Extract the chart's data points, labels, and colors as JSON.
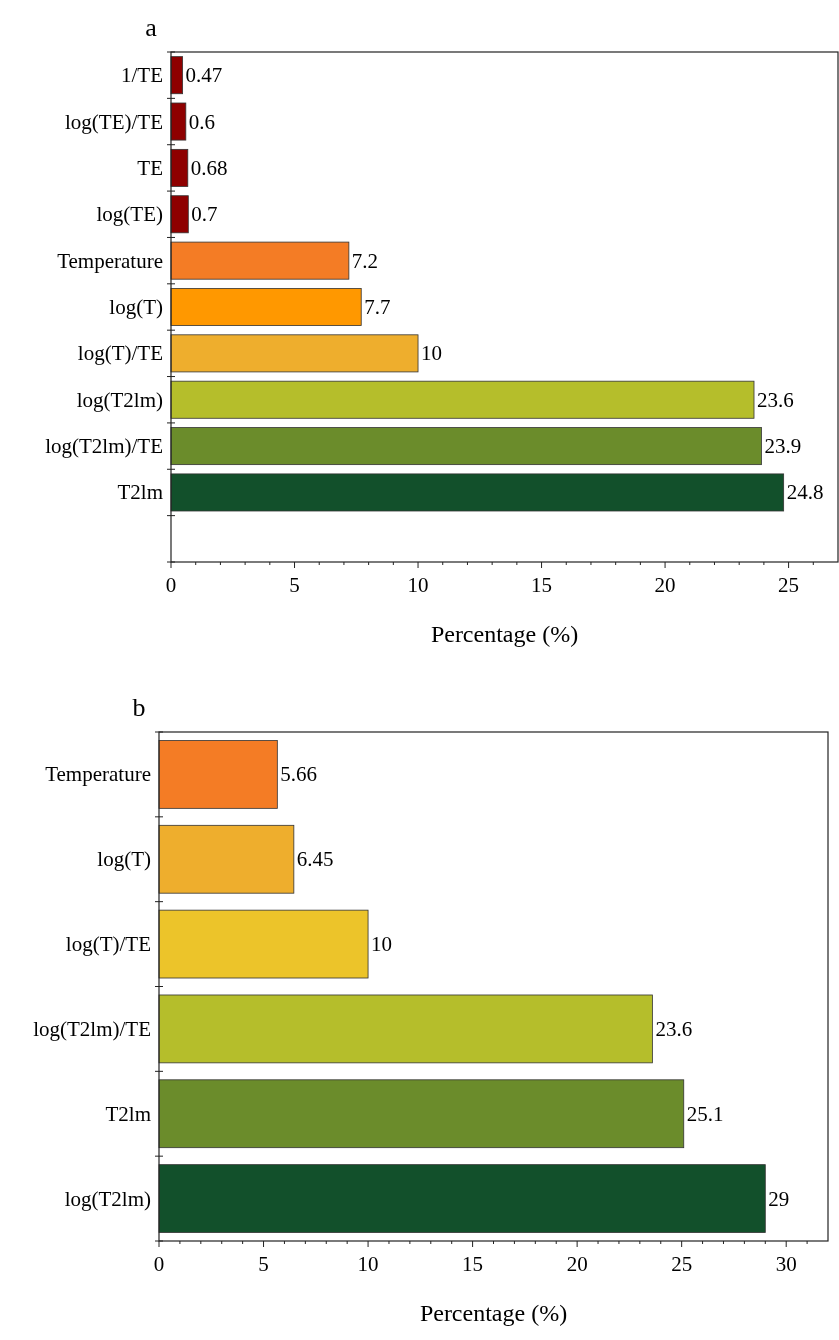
{
  "chart_data": [
    {
      "type": "bar",
      "title": "a",
      "orientation": "horizontal",
      "xlabel": "Percentage (%)",
      "categories": [
        "1/TE",
        "log(TE)/TE",
        "TE",
        "log(TE)",
        "Temperature",
        "log(T)",
        "log(T)/TE",
        "log(T2lm)",
        "log(T2lm)/TE",
        "T2lm"
      ],
      "values": [
        0.47,
        0.6,
        0.68,
        0.7,
        7.2,
        7.7,
        10,
        23.6,
        23.9,
        24.8
      ],
      "colors": [
        "#8e0000",
        "#8e0000",
        "#8e0000",
        "#8e0000",
        "#f47c25",
        "#ff9800",
        "#eeae2d",
        "#b5be2b",
        "#6b8c2b",
        "#12502b"
      ],
      "xlim": [
        0,
        27
      ],
      "xticks": [
        0,
        5,
        10,
        15,
        20,
        25
      ],
      "data_labels": true,
      "grid": false
    },
    {
      "type": "bar",
      "title": "b",
      "orientation": "horizontal",
      "xlabel": "Percentage (%)",
      "categories": [
        "Temperature",
        "log(T)",
        "log(T)/TE",
        "log(T2lm)/TE",
        "T2lm",
        "log(T2lm)"
      ],
      "values": [
        5.66,
        6.45,
        10,
        23.6,
        25.1,
        29
      ],
      "colors": [
        "#f47c25",
        "#eeae2d",
        "#ecc42a",
        "#b5be2b",
        "#6b8c2b",
        "#12502b"
      ],
      "xlim": [
        0,
        32
      ],
      "xticks": [
        0,
        5,
        10,
        15,
        20,
        25,
        30
      ],
      "data_labels": true,
      "grid": false
    }
  ]
}
